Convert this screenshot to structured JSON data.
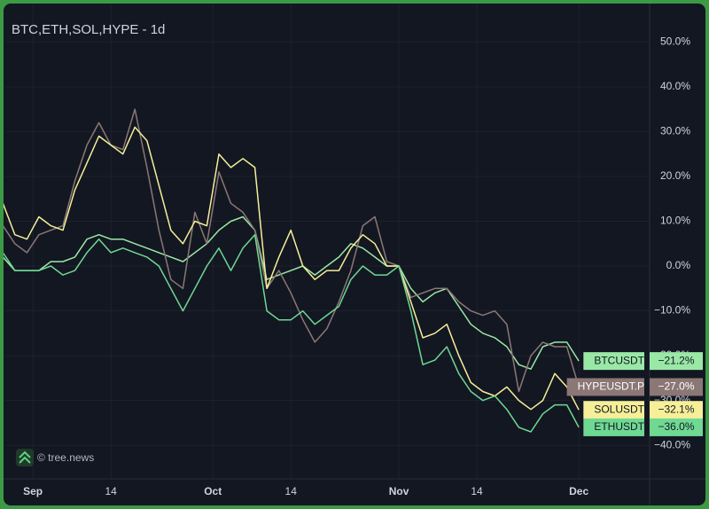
{
  "chart_data": {
    "type": "line",
    "title": "BTC,ETH,SOL,HYPE - 1d",
    "watermark": "© tree.news",
    "x": [
      -5,
      -3,
      -1,
      1,
      3,
      5,
      7,
      9,
      11,
      13,
      15,
      17,
      19,
      21,
      23,
      25,
      27,
      29,
      31,
      33,
      35,
      37,
      39,
      41,
      43,
      45,
      47,
      49,
      51,
      53,
      55,
      57,
      59,
      61,
      63,
      65,
      67,
      69,
      71,
      73,
      75,
      77,
      79,
      81,
      83,
      85,
      87,
      89,
      91
    ],
    "xlim": [
      -4.6,
      102.8
    ],
    "xticks": [
      {
        "value": 0,
        "label": "Sep"
      },
      {
        "value": 13,
        "label": "14"
      },
      {
        "value": 30,
        "label": "Oct"
      },
      {
        "value": 43,
        "label": "14"
      },
      {
        "value": 61,
        "label": "Nov"
      },
      {
        "value": 74,
        "label": "14"
      },
      {
        "value": 91,
        "label": "Dec"
      }
    ],
    "ylim": [
      -47.5,
      58.4
    ],
    "yticks": [
      {
        "value": -40,
        "label": "−40.0%"
      },
      {
        "value": -30,
        "label": "−30.0%"
      },
      {
        "value": -20,
        "label": "−20.0%"
      },
      {
        "value": -10,
        "label": "−10.0%"
      },
      {
        "value": 0,
        "label": "0.0%"
      },
      {
        "value": 10,
        "label": "10.0%"
      },
      {
        "value": 20,
        "label": "20.0%"
      },
      {
        "value": 30,
        "label": "30.0%"
      },
      {
        "value": 40,
        "label": "40.0%"
      },
      {
        "value": 50,
        "label": "50.0%"
      }
    ],
    "grid": true,
    "series": [
      {
        "name": "BTCUSDT",
        "color": "#9ae8a6",
        "values": [
          2,
          -1,
          -1,
          -1,
          1,
          1,
          2,
          6,
          7,
          6,
          6,
          5,
          4,
          3,
          2,
          1,
          3,
          5,
          8,
          10,
          11,
          8,
          -3,
          -2,
          -1,
          0,
          -2,
          0,
          2,
          5,
          4,
          2,
          0,
          0,
          -5,
          -8,
          -6,
          -5,
          -9,
          -13,
          -15,
          -16,
          -18,
          -22,
          -23,
          -18,
          -17,
          -17,
          -21.2
        ],
        "value_labels": [
          null,
          null,
          null,
          null,
          null,
          null,
          null,
          null,
          null,
          null,
          null,
          null,
          null,
          null,
          null,
          null,
          null,
          null,
          null,
          null,
          null,
          null,
          null,
          null,
          null,
          null,
          null,
          null,
          null,
          null,
          null,
          null,
          null,
          null,
          null,
          null,
          null,
          null,
          null,
          null,
          null,
          null,
          null,
          null,
          null,
          null,
          null,
          null,
          "−21.2%"
        ]
      },
      {
        "name": "HYPEUSDT.P",
        "color": "#8b7775",
        "values": [
          9,
          5,
          3,
          7,
          8,
          9,
          19,
          27,
          32,
          27,
          26,
          35,
          22,
          8,
          -3,
          -5,
          12,
          5,
          21,
          14,
          12,
          8,
          -5,
          -1,
          -6,
          -12,
          -17,
          -14,
          -8,
          -1,
          9,
          11,
          1,
          0,
          -7,
          -6,
          -5,
          -5,
          -8,
          -10,
          -11,
          -10,
          -13,
          -28,
          -20,
          -17,
          -18,
          -18,
          -27
        ],
        "value_labels": [
          null,
          null,
          null,
          null,
          null,
          null,
          null,
          null,
          null,
          null,
          null,
          null,
          null,
          null,
          null,
          null,
          null,
          null,
          null,
          null,
          null,
          null,
          null,
          null,
          null,
          null,
          null,
          null,
          null,
          null,
          null,
          null,
          null,
          null,
          null,
          null,
          null,
          null,
          null,
          null,
          null,
          null,
          null,
          null,
          null,
          null,
          null,
          null,
          "−27.0%"
        ]
      },
      {
        "name": "SOLUSDT",
        "color": "#f6ef98",
        "values": [
          14,
          7,
          6,
          11,
          9,
          8,
          17,
          23,
          29,
          27,
          25,
          31,
          28,
          18,
          8,
          5,
          10,
          9,
          25,
          22,
          24,
          22,
          -5,
          2,
          8,
          0,
          -3,
          -1,
          -1,
          4,
          7,
          5,
          0,
          0,
          -8,
          -16,
          -15,
          -13,
          -20,
          -26,
          -28,
          -29,
          -27,
          -30,
          -32,
          -30,
          -24,
          -27,
          -32.1
        ],
        "value_labels": [
          null,
          null,
          null,
          null,
          null,
          null,
          null,
          null,
          null,
          null,
          null,
          null,
          null,
          null,
          null,
          null,
          null,
          null,
          null,
          null,
          null,
          null,
          null,
          null,
          null,
          null,
          null,
          null,
          null,
          null,
          null,
          null,
          null,
          null,
          null,
          null,
          null,
          null,
          null,
          null,
          null,
          null,
          null,
          null,
          null,
          null,
          null,
          null,
          "−32.1%"
        ]
      },
      {
        "name": "ETHUSDT",
        "color": "#6fd893",
        "values": [
          3,
          -1,
          -1,
          -1,
          0,
          -2,
          -1,
          3,
          6,
          3,
          4,
          3,
          2,
          0,
          -5,
          -10,
          -5,
          0,
          4,
          -1,
          4,
          7,
          -10,
          -12,
          -12,
          -10,
          -13,
          -11,
          -9,
          -3,
          0,
          -2,
          -2,
          0,
          -10,
          -22,
          -21,
          -18,
          -24,
          -28,
          -30,
          -29,
          -32,
          -36,
          -37,
          -33,
          -31,
          -31,
          -36
        ],
        "value_labels": [
          null,
          null,
          null,
          null,
          null,
          null,
          null,
          null,
          null,
          null,
          null,
          null,
          null,
          null,
          null,
          null,
          null,
          null,
          null,
          null,
          null,
          null,
          null,
          null,
          null,
          null,
          null,
          null,
          null,
          null,
          null,
          null,
          null,
          null,
          null,
          null,
          null,
          null,
          null,
          null,
          null,
          null,
          null,
          null,
          null,
          null,
          null,
          null,
          "−36.0%"
        ]
      }
    ]
  }
}
